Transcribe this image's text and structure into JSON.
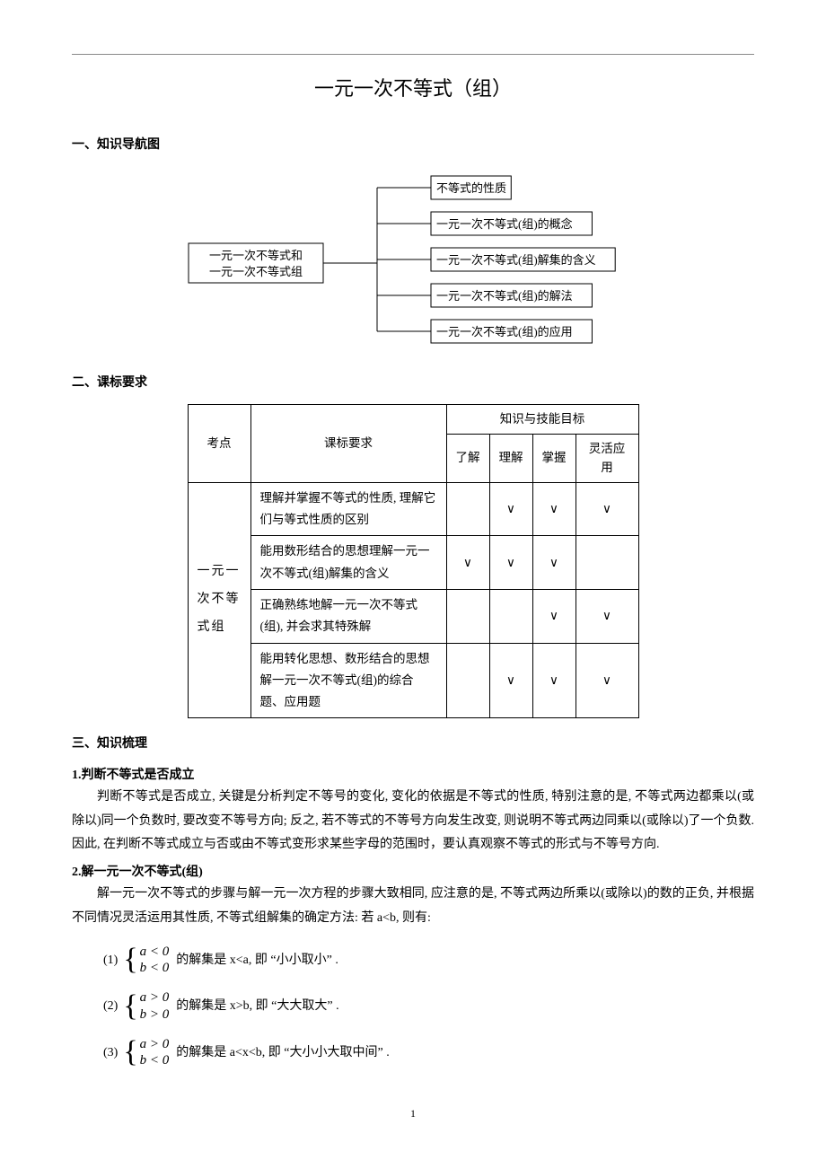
{
  "title": "一元一次不等式（组）",
  "section1": {
    "heading": "一、知识导航图",
    "diagram": {
      "root": "一元一次不等式和\n一元一次不等式组",
      "leaves": [
        "不等式的性质",
        "一元一次不等式(组)的概念",
        "一元一次不等式(组)解集的含义",
        "一元一次不等式(组)的解法",
        "一元一次不等式(组)的应用"
      ],
      "box_stroke": "#000000",
      "line_stroke": "#000000",
      "font_size": 13
    }
  },
  "section2": {
    "heading": "二、课标要求",
    "table": {
      "header_group": "知识与技能目标",
      "headers": [
        "考点",
        "课标要求",
        "了解",
        "理解",
        "掌握",
        "灵活应用"
      ],
      "kaodian": "一元一次不等式组",
      "rows": [
        {
          "req": "理解并掌握不等式的性质, 理解它们与等式性质的区别",
          "marks": [
            "",
            "∨",
            "∨",
            "∨"
          ]
        },
        {
          "req": "能用数形结合的思想理解一元一次不等式(组)解集的含义",
          "marks": [
            "∨",
            "∨",
            "∨",
            ""
          ]
        },
        {
          "req": "正确熟练地解一元一次不等式(组), 并会求其特殊解",
          "marks": [
            "",
            "",
            "∨",
            "∨"
          ]
        },
        {
          "req": "能用转化思想、数形结合的思想解一元一次不等式(组)的综合题、应用题",
          "marks": [
            "",
            "∨",
            "∨",
            "∨"
          ]
        }
      ],
      "col_widths": {
        "kaodian": 70,
        "req": 218,
        "mark": 48,
        "mark_last": 70
      }
    }
  },
  "section3": {
    "heading": "三、知识梳理",
    "sub1": {
      "heading": "1.判断不等式是否成立",
      "para": "判断不等式是否成立, 关键是分析判定不等号的变化, 变化的依据是不等式的性质, 特别注意的是, 不等式两边都乘以(或除以)同一个负数时, 要改变不等号方向; 反之, 若不等式的不等号方向发生改变, 则说明不等式两边同乘以(或除以)了一个负数. 因此, 在判断不等式成立与否或由不等式变形求某些字母的范围时，要认真观察不等式的形式与不等号方向."
    },
    "sub2": {
      "heading": "2.解一元一次不等式(组)",
      "para": "解一元一次不等式的步骤与解一元一次方程的步骤大致相同, 应注意的是, 不等式两边所乘以(或除以)的数的正负, 并根据不同情况灵活运用其性质, 不等式组解集的确定方法: 若 a<b, 则有:",
      "items": [
        {
          "num": "(1)",
          "cond": [
            "a < 0",
            "b < 0"
          ],
          "tail": " 的解集是 x<a, 即 “小小取小” ."
        },
        {
          "num": "(2)",
          "cond": [
            "a > 0",
            "b > 0"
          ],
          "tail": " 的解集是 x>b, 即 “大大取大” ."
        },
        {
          "num": "(3)",
          "cond": [
            "a > 0",
            "b < 0"
          ],
          "tail": "的解集是 a<x<b, 即 “大小小大取中间” ."
        }
      ]
    }
  },
  "page_number": "1"
}
